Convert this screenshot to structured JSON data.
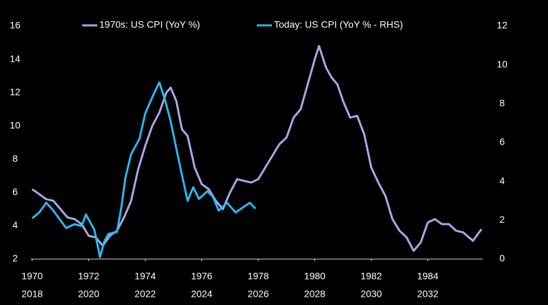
{
  "chart_data": {
    "type": "line",
    "xlim": [
      1970,
      1986
    ],
    "xticks": [
      1970,
      1972,
      1974,
      1976,
      1978,
      1980,
      1982,
      1984
    ],
    "x2lim": [
      2018,
      2034
    ],
    "x2ticks": [
      2018,
      2020,
      2022,
      2024,
      2026,
      2028,
      2030,
      2032
    ],
    "ylim": [
      2,
      16
    ],
    "yticks": [
      2,
      4,
      6,
      8,
      10,
      12,
      14,
      16
    ],
    "y2lim": [
      0,
      12
    ],
    "y2ticks": [
      0,
      2,
      4,
      6,
      8,
      10,
      12
    ],
    "series": [
      {
        "name": "1970s: US CPI (YoY %)",
        "color": "#a9a9e8",
        "x": [
          1970.0,
          1970.25,
          1970.5,
          1970.75,
          1971.0,
          1971.25,
          1971.5,
          1971.75,
          1972.0,
          1972.25,
          1972.5,
          1972.75,
          1973.0,
          1973.25,
          1973.5,
          1973.75,
          1974.0,
          1974.25,
          1974.5,
          1974.75,
          1974.9,
          1975.1,
          1975.3,
          1975.5,
          1975.75,
          1976.0,
          1976.25,
          1976.5,
          1976.75,
          1977.0,
          1977.25,
          1977.5,
          1977.75,
          1978.0,
          1978.25,
          1978.5,
          1978.75,
          1979.0,
          1979.25,
          1979.5,
          1979.75,
          1980.0,
          1980.15,
          1980.4,
          1980.6,
          1980.8,
          1981.0,
          1981.25,
          1981.5,
          1981.75,
          1982.0,
          1982.25,
          1982.5,
          1982.75,
          1983.0,
          1983.25,
          1983.5,
          1983.75,
          1984.0,
          1984.25,
          1984.5,
          1984.75,
          1985.0,
          1985.25,
          1985.6,
          1985.9
        ],
        "values": [
          6.2,
          5.9,
          5.6,
          5.5,
          5.0,
          4.5,
          4.4,
          4.1,
          3.4,
          3.3,
          2.8,
          3.4,
          3.7,
          4.5,
          5.5,
          7.4,
          8.8,
          10.0,
          10.8,
          12.0,
          12.3,
          11.5,
          9.8,
          9.4,
          7.5,
          6.5,
          6.2,
          5.5,
          5.0,
          6.0,
          6.8,
          6.7,
          6.6,
          6.8,
          7.5,
          8.2,
          8.9,
          9.3,
          10.5,
          11.0,
          12.5,
          14.0,
          14.8,
          13.5,
          12.9,
          12.5,
          11.5,
          10.5,
          10.6,
          9.5,
          7.5,
          6.6,
          5.8,
          4.4,
          3.7,
          3.3,
          2.5,
          3.0,
          4.2,
          4.4,
          4.1,
          4.1,
          3.7,
          3.6,
          3.1,
          3.8
        ]
      },
      {
        "name": "Today: US CPI (YoY % - RHS)",
        "color": "#2bb7f0",
        "axis": "y2",
        "xaxis": "x2",
        "x": [
          2018.0,
          2018.25,
          2018.5,
          2018.75,
          2018.9,
          2019.2,
          2019.5,
          2019.75,
          2019.9,
          2020.2,
          2020.4,
          2020.55,
          2020.7,
          2021.0,
          2021.15,
          2021.3,
          2021.5,
          2021.8,
          2022.0,
          2022.3,
          2022.5,
          2022.7,
          2022.9,
          2023.2,
          2023.5,
          2023.7,
          2023.9,
          2024.2,
          2024.4,
          2024.6,
          2024.9,
          2025.2,
          2025.5,
          2025.7,
          2025.9
        ],
        "values": [
          2.1,
          2.4,
          2.9,
          2.5,
          2.2,
          1.6,
          1.8,
          1.7,
          2.3,
          1.5,
          0.1,
          0.9,
          1.3,
          1.4,
          2.6,
          4.2,
          5.4,
          6.2,
          7.5,
          8.5,
          9.1,
          8.2,
          7.1,
          5.0,
          3.0,
          3.7,
          3.1,
          3.5,
          3.2,
          2.5,
          2.9,
          2.4,
          2.7,
          2.9,
          2.6
        ]
      }
    ]
  }
}
